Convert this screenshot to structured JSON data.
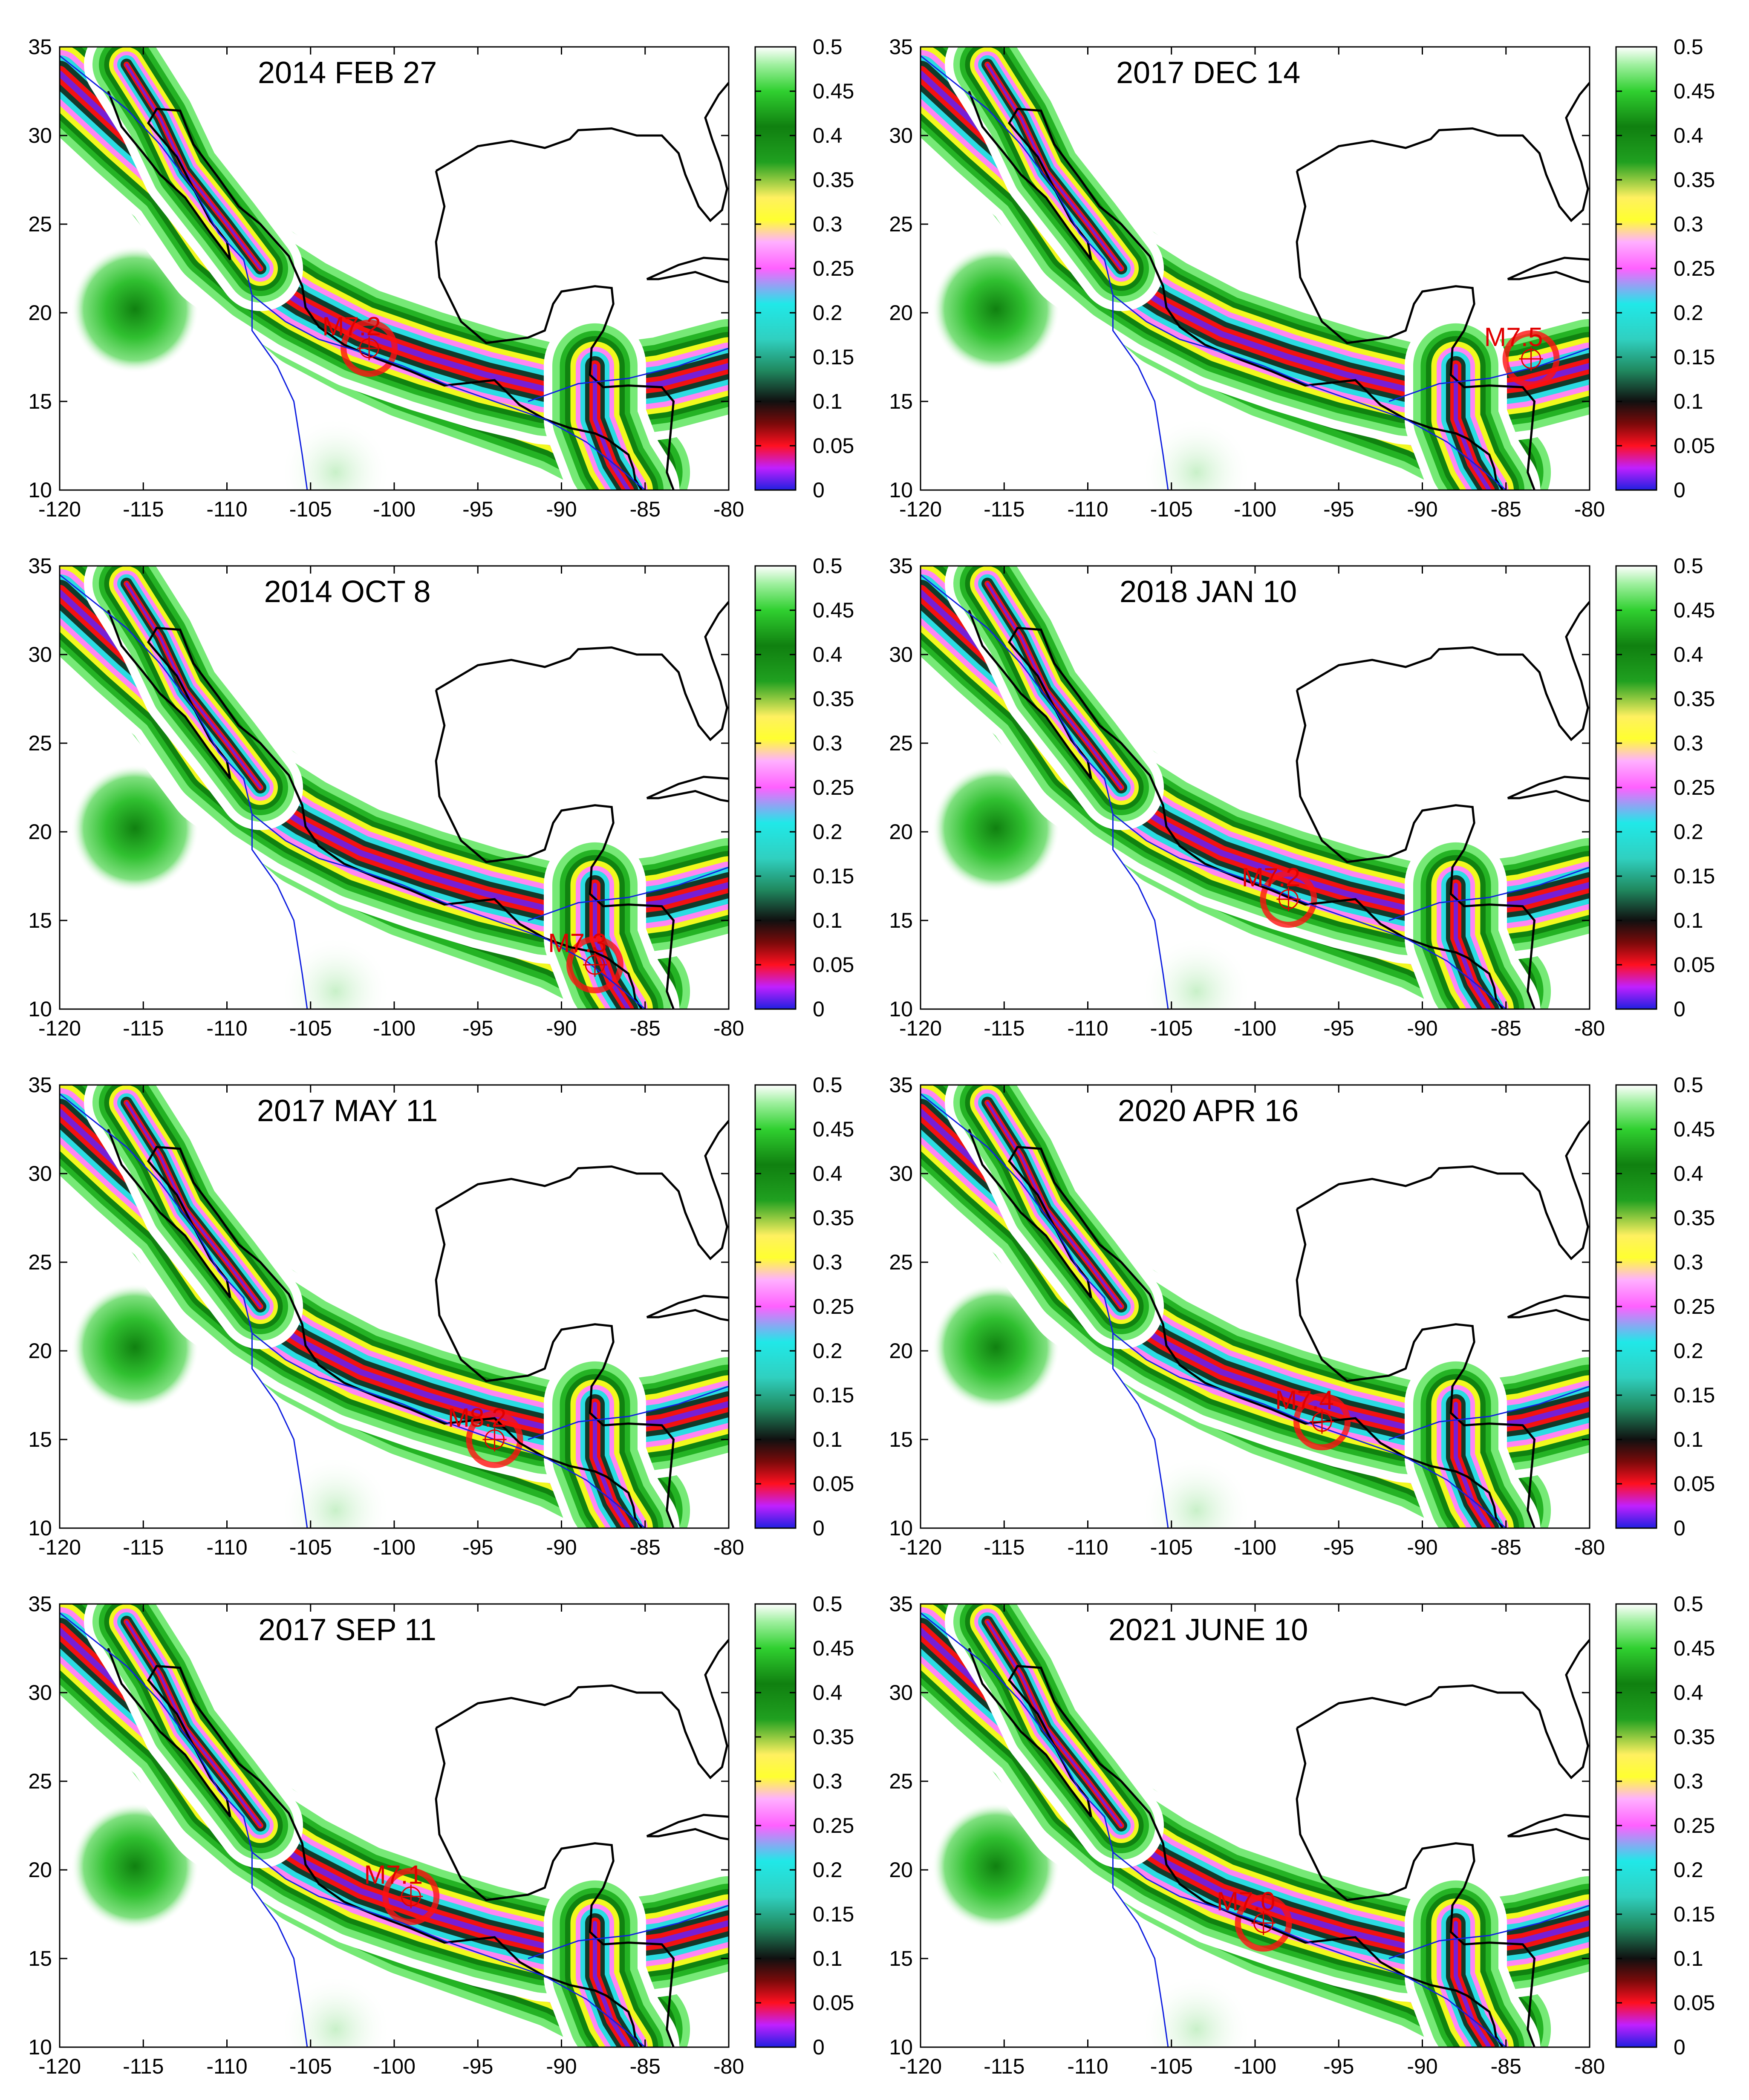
{
  "axes": {
    "x_ticks": [
      "-120",
      "-115",
      "-110",
      "-105",
      "-100",
      "-95",
      "-90",
      "-85",
      "-80"
    ],
    "y_ticks": [
      "10",
      "15",
      "20",
      "25",
      "30",
      "35"
    ],
    "xlim": [
      -120,
      -80
    ],
    "ylim": [
      10,
      35
    ]
  },
  "colorbar": {
    "ticks": [
      "0",
      "0.05",
      "0.1",
      "0.15",
      "0.2",
      "0.25",
      "0.3",
      "0.35",
      "0.4",
      "0.45",
      "0.5"
    ],
    "range": [
      0,
      0.5
    ],
    "colors": [
      "#2020e0",
      "#ff00ff",
      "#ff1010",
      "#101010",
      "#20a060",
      "#20e0e0",
      "#ff80ff",
      "#ffff20",
      "#10a010",
      "#40e040",
      "#ffffff"
    ]
  },
  "panels": [
    {
      "title": "2014 FEB 27",
      "event": {
        "label": "M7.2",
        "lon": -101.5,
        "lat": 18.0
      }
    },
    {
      "title": "2017 DEC 14",
      "event": {
        "label": "M7.5",
        "lon": -83.5,
        "lat": 17.4
      }
    },
    {
      "title": "2014 OCT 8",
      "event": {
        "label": "M7.3",
        "lon": -88.0,
        "lat": 12.5
      }
    },
    {
      "title": "2018 JAN 10",
      "event": {
        "label": "M7.2",
        "lon": -98.0,
        "lat": 16.2
      }
    },
    {
      "title": "2017 MAY 11",
      "event": {
        "label": "M8.2",
        "lon": -94.0,
        "lat": 15.0
      }
    },
    {
      "title": "2020 APR 16",
      "event": {
        "label": "M7.4",
        "lon": -96.0,
        "lat": 16.0
      }
    },
    {
      "title": "2017 SEP 11",
      "event": {
        "label": "M7.1",
        "lon": -99.0,
        "lat": 18.5
      }
    },
    {
      "title": "2021 JUNE 10",
      "event": {
        "label": "M7.0",
        "lon": -99.5,
        "lat": 17.0
      }
    }
  ]
}
